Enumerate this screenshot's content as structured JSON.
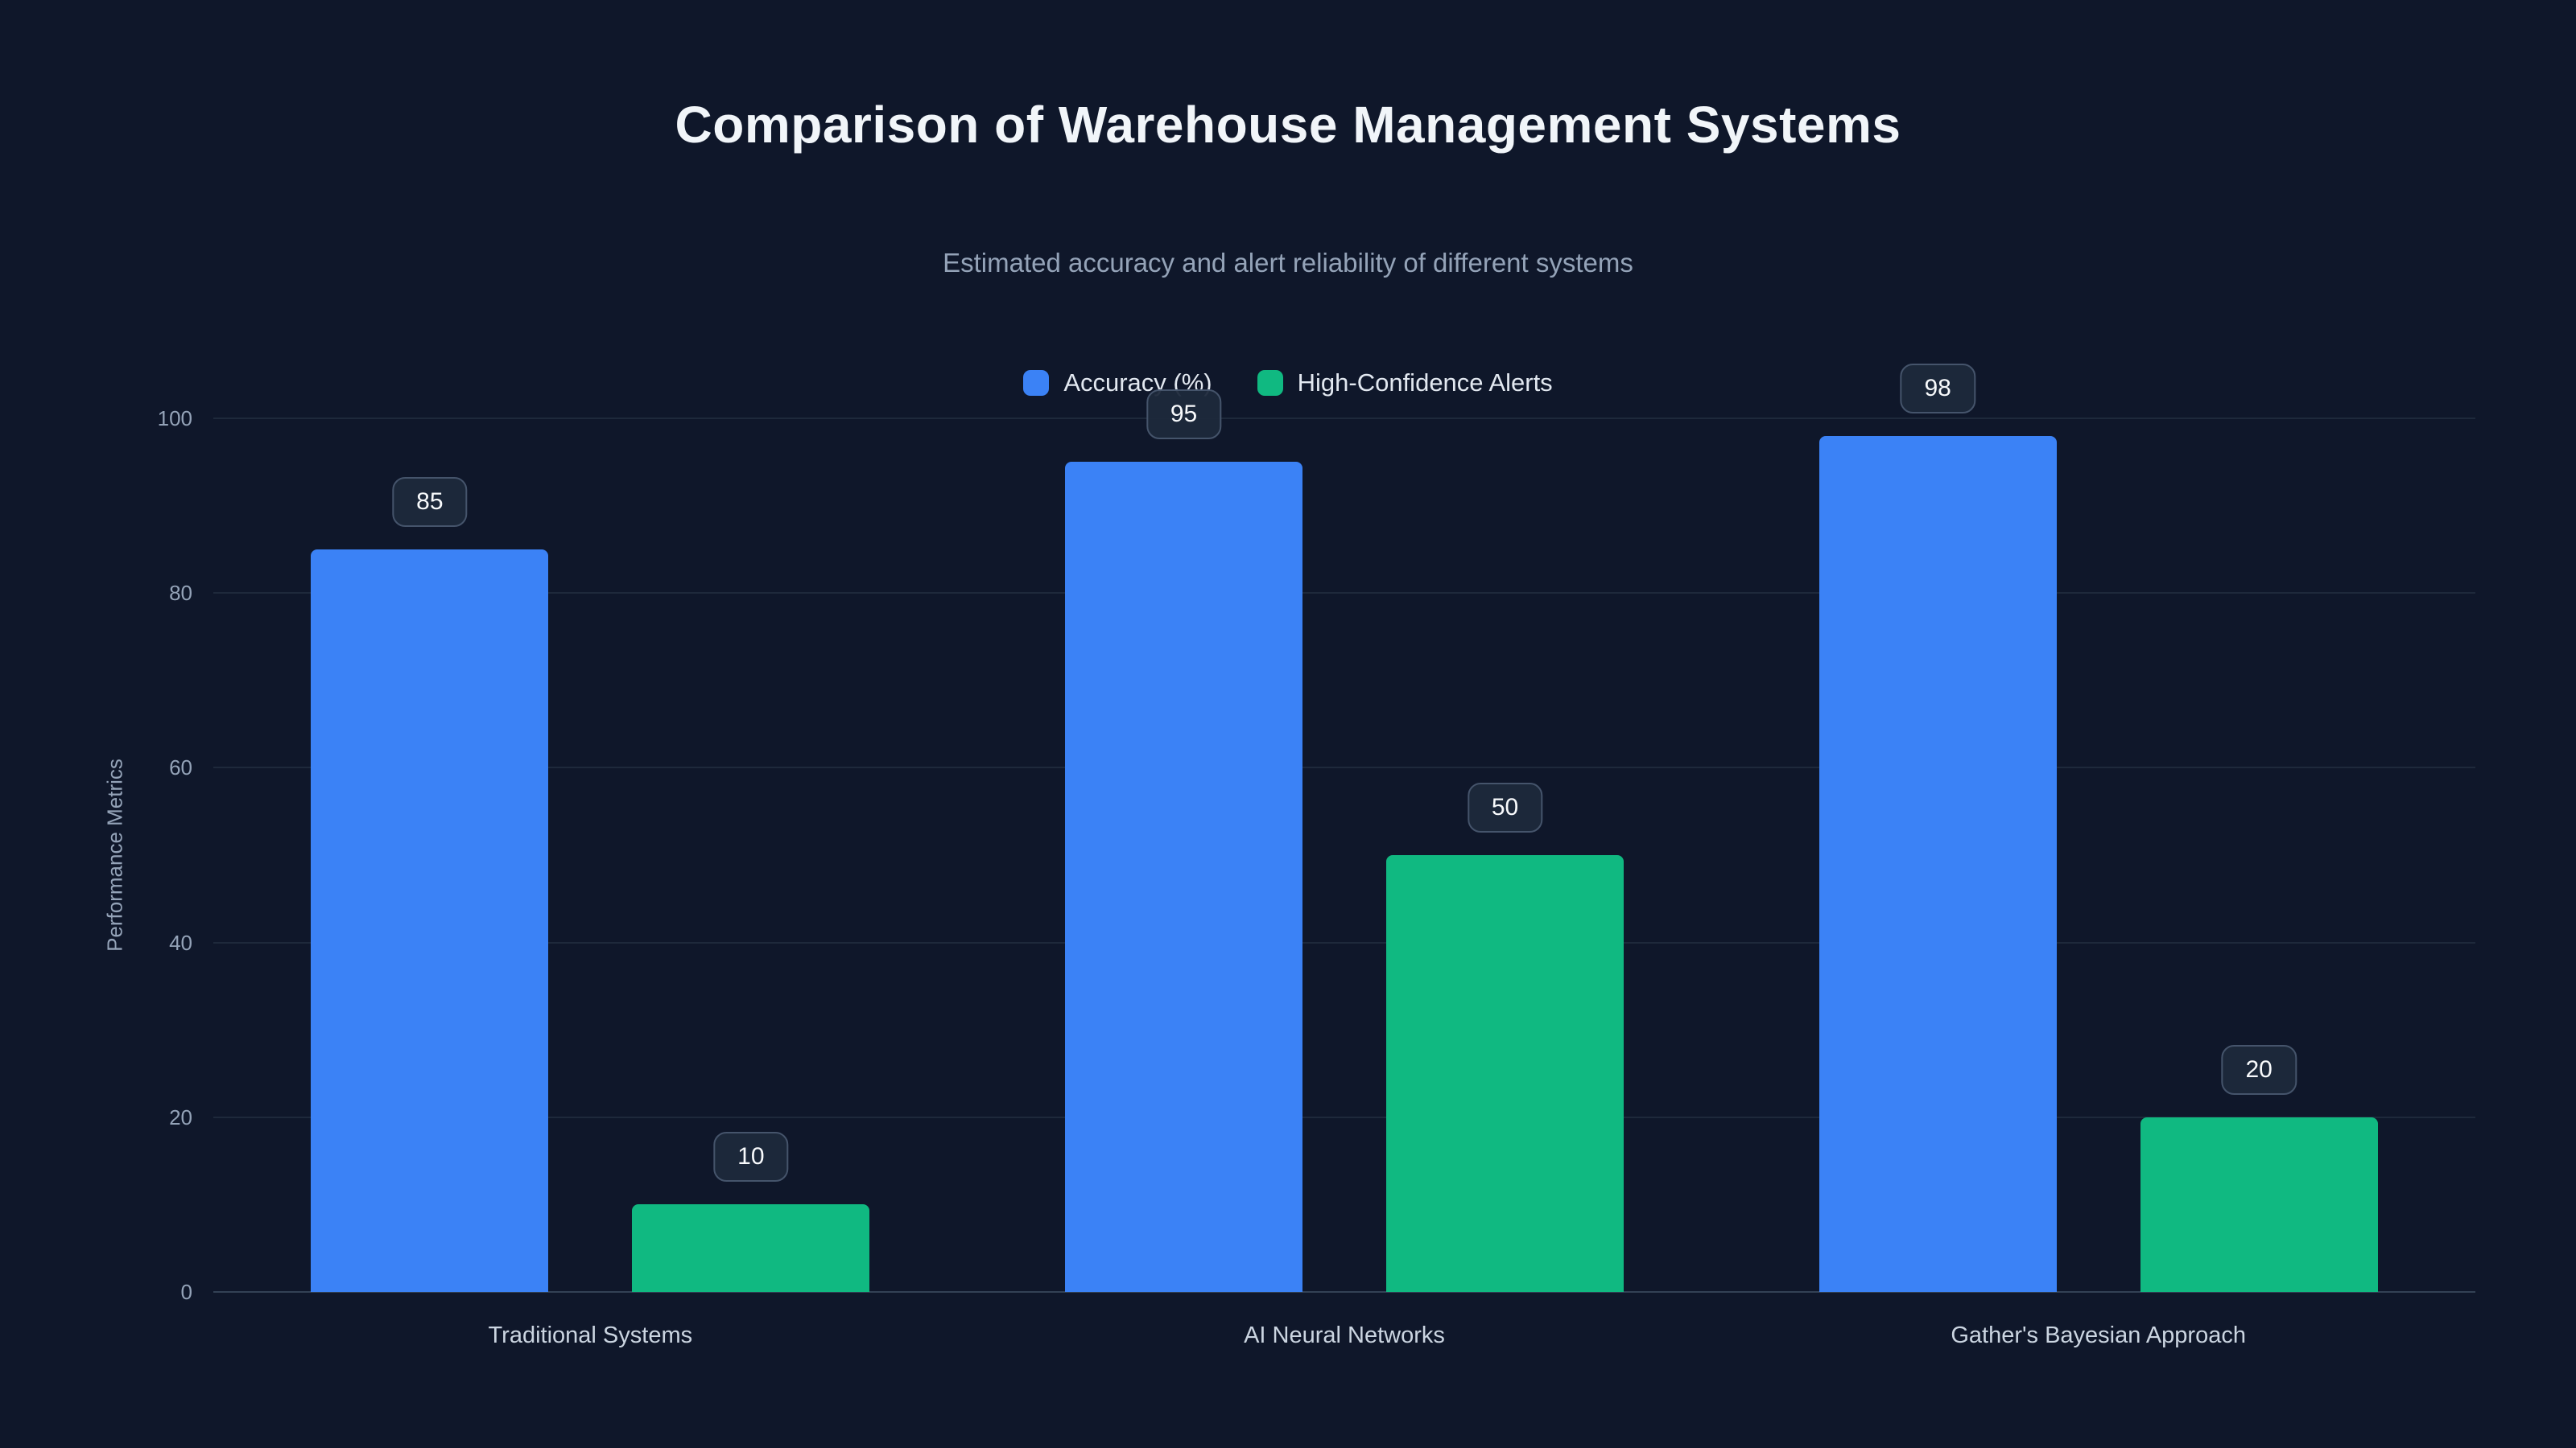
{
  "chart_data": {
    "type": "bar",
    "title": "Comparison of Warehouse Management Systems",
    "subtitle": "Estimated accuracy and alert reliability of different systems",
    "categories": [
      "Traditional Systems",
      "AI Neural Networks",
      "Gather's Bayesian Approach"
    ],
    "series": [
      {
        "name": "Accuracy (%)",
        "color": "#3b82f6",
        "values": [
          85,
          95,
          98
        ]
      },
      {
        "name": "High-Confidence Alerts",
        "color": "#10b981",
        "values": [
          10,
          50,
          20
        ]
      }
    ],
    "ylabel": "Performance Metrics",
    "ylim": [
      0,
      100
    ],
    "yticks": [
      0,
      20,
      40,
      60,
      80,
      100
    ],
    "grid": true,
    "legend_position": "top-center",
    "colors": {
      "background": "#0f172a",
      "gridline": "#1e293b",
      "axis": "#334155",
      "accuracy": "#3b82f6",
      "alerts": "#10b981"
    }
  }
}
